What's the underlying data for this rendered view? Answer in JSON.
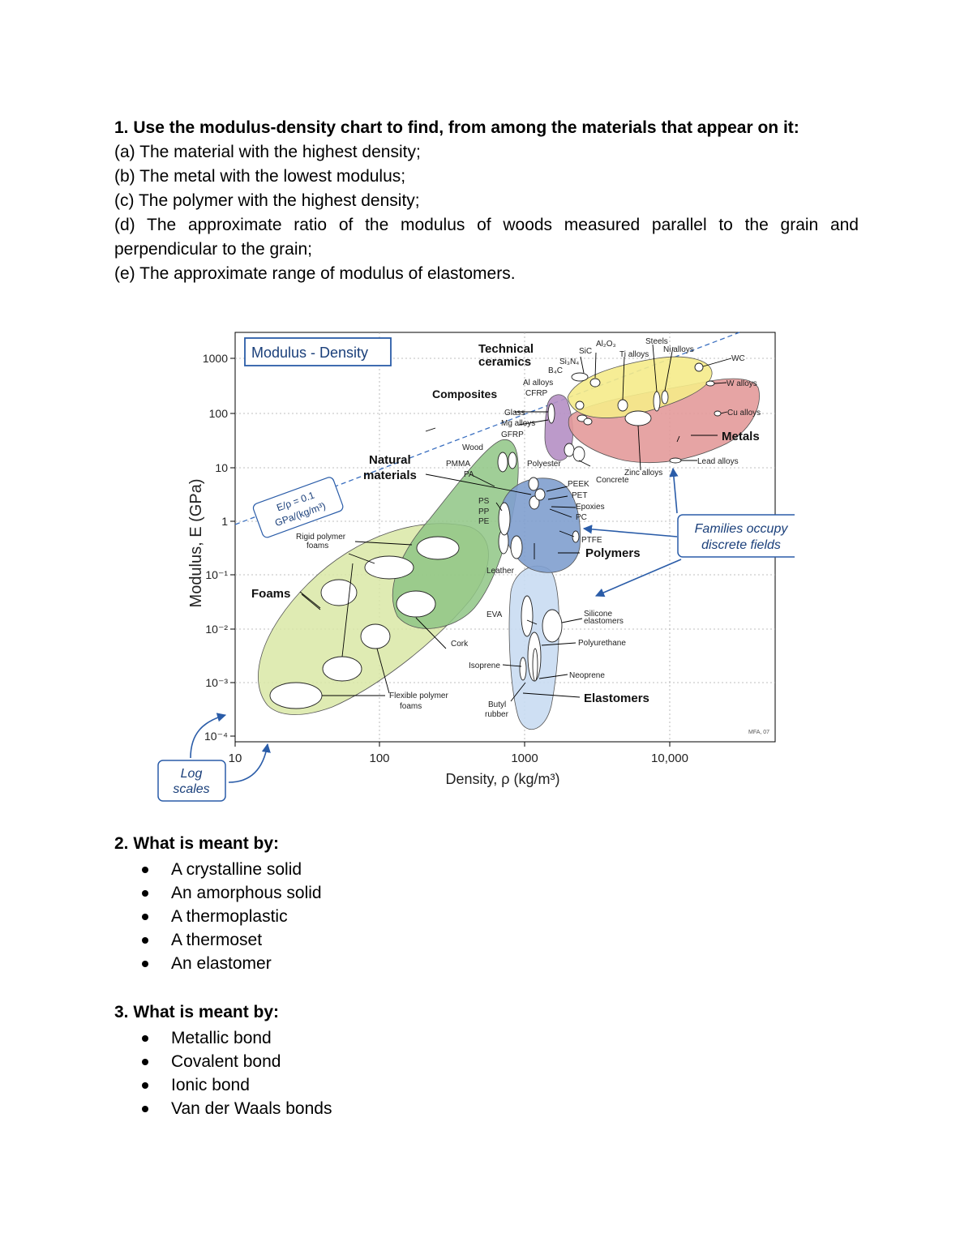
{
  "question1": {
    "heading": "1. Use the modulus-density chart to find, from among the materials that appear on it:",
    "items": [
      "(a) The material with the highest density;",
      "(b) The metal with the lowest modulus;",
      "(c) The polymer with the highest density;",
      "(d) The approximate ratio of the modulus of woods measured parallel to the grain and perpendicular to the grain;",
      "(e) The approximate range of modulus of elastomers."
    ]
  },
  "chart_data": {
    "type": "bubble",
    "title": "Modulus - Density",
    "xlabel": "Density, ρ  (kg/m³)",
    "ylabel": "Modulus, E (GPa)",
    "x_scale": "log",
    "y_scale": "log",
    "xlim": [
      10,
      30000
    ],
    "ylim": [
      0.0001,
      3000
    ],
    "x_ticks": [
      "10",
      "100",
      "1000",
      "10,000"
    ],
    "y_ticks": [
      "1000",
      "100",
      "10",
      "1",
      "10⁻¹",
      "10⁻²",
      "10⁻³",
      "10⁻⁴"
    ],
    "guide_line": {
      "label_line1": "E/ρ = 0.1",
      "label_line2": "GPa/(kg/m³)"
    },
    "families": [
      {
        "name": "Technical ceramics",
        "color": "#f5eb8a"
      },
      {
        "name": "Composites",
        "color": "#b58fc4"
      },
      {
        "name": "Metals",
        "color": "#e39a9a"
      },
      {
        "name": "Natural materials",
        "color": "#8fc585"
      },
      {
        "name": "Polymers",
        "color": "#7f9fce"
      },
      {
        "name": "Foams",
        "color": "#d9e7a6"
      },
      {
        "name": "Elastomers",
        "color": "#c9dbf2"
      }
    ],
    "materials": [
      "Al₂O₃",
      "SiC",
      "Si₃N₄",
      "B₄C",
      "Steels",
      "Ti alloys",
      "Ni alloys",
      "WC",
      "W alloys",
      "Cu alloys",
      "Lead alloys",
      "Zinc alloys",
      "Al alloys",
      "CFRP",
      "Glass",
      "Mg alloys",
      "GFRP",
      "Concrete",
      "Wood",
      "PMMA",
      "PA",
      "Polyester",
      "PEEK",
      "PET",
      "Epoxies",
      "PC",
      "PS",
      "PP",
      "PE",
      "PTFE",
      "Leather",
      "Rigid polymer foams",
      "Cork",
      "Flexible polymer foams",
      "EVA",
      "Silicone elastomers",
      "Polyurethane",
      "Isoprene",
      "Neoprene",
      "Butyl rubber"
    ],
    "callouts": {
      "families_occupy_line1": "Families occupy",
      "families_occupy_line2": "discrete fields",
      "log_scales_line1": "Log",
      "log_scales_line2": "scales",
      "credit": "MFA, 07"
    }
  },
  "question2": {
    "heading": "2. What is meant by:",
    "items": [
      "A crystalline solid",
      "An amorphous solid",
      "A thermoplastic",
      "A thermoset",
      "An elastomer"
    ]
  },
  "question3": {
    "heading": "3. What is meant by:",
    "items": [
      "Metallic bond",
      "Covalent bond",
      "Ionic bond",
      "Van der Waals bonds"
    ]
  }
}
